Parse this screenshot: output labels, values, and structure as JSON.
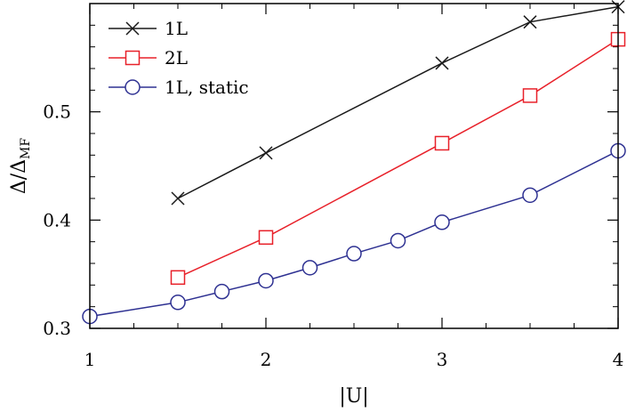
{
  "chart_data": {
    "type": "line",
    "title": "",
    "xlabel": "|U|",
    "ylabel_main": "Δ/Δ",
    "ylabel_sub": "MF",
    "xlim": [
      1,
      4
    ],
    "ylim": [
      0.3,
      0.6
    ],
    "x_ticks": [
      1,
      2,
      3,
      4
    ],
    "x_tick_labels": [
      "1",
      "2",
      "3",
      "4"
    ],
    "x_minor_step": 0.25,
    "y_ticks": [
      0.3,
      0.4,
      0.5
    ],
    "y_tick_labels": [
      "0.3",
      "0.4",
      "0.5"
    ],
    "y_minor_step": 0.02,
    "legend_position": "top-left",
    "grid": false,
    "series": [
      {
        "name": "1L",
        "color": "#1a1a1a",
        "marker": "x",
        "x": [
          1.5,
          2,
          3,
          3.5,
          4
        ],
        "y": [
          0.42,
          0.462,
          0.545,
          0.583,
          0.597
        ]
      },
      {
        "name": "2L",
        "color": "#e8212a",
        "marker": "square",
        "x": [
          1.5,
          2,
          3,
          3.5,
          4
        ],
        "y": [
          0.347,
          0.384,
          0.471,
          0.515,
          0.567
        ]
      },
      {
        "name": "1L, static",
        "color": "#2e3192",
        "marker": "circle",
        "x": [
          1,
          1.5,
          1.75,
          2,
          2.25,
          2.5,
          2.75,
          3,
          3.5,
          4
        ],
        "y": [
          0.311,
          0.324,
          0.334,
          0.344,
          0.356,
          0.369,
          0.381,
          0.398,
          0.423,
          0.464
        ]
      }
    ]
  }
}
